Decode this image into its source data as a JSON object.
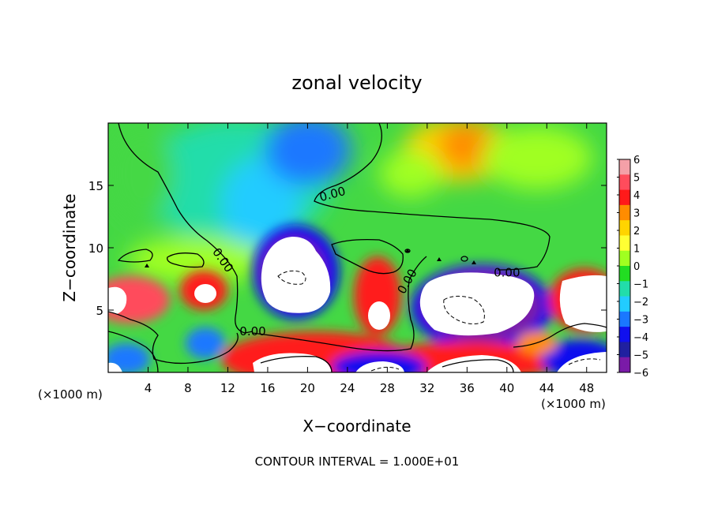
{
  "chart_data": {
    "type": "heatmap",
    "title": "zonal velocity",
    "xlabel": "X−coordinate",
    "ylabel": "Z−coordinate",
    "x_unit_left": "(×1000 m)",
    "x_unit_right": "(×1000 m)",
    "xlim": [
      0,
      50
    ],
    "ylim": [
      0,
      20
    ],
    "xticks": [
      4,
      8,
      12,
      16,
      20,
      24,
      28,
      32,
      36,
      40,
      44,
      48
    ],
    "yticks": [
      5,
      10,
      15
    ],
    "colorbar": {
      "min": -6,
      "max": 6,
      "ticks": [
        "6",
        "5",
        "4",
        "3",
        "2",
        "1",
        "0",
        "−1",
        "−2",
        "−3",
        "−4",
        "−5",
        "−6"
      ],
      "colors": [
        "#f4a0a8",
        "#ff4c5c",
        "#ff1a1a",
        "#ff8c00",
        "#ffd400",
        "#ffff33",
        "#a0ff20",
        "#22dd22",
        "#22ddaa",
        "#22ccff",
        "#1a78ff",
        "#1010ee",
        "#2020a0",
        "#7a1aa8"
      ]
    },
    "contour_labels": [
      {
        "text": "0.00",
        "x": 22.5,
        "y": 14.3,
        "rot": -15
      },
      {
        "text": "0.00",
        "x": 11.5,
        "y": 9.0,
        "rot": 55
      },
      {
        "text": "0.00",
        "x": 14.5,
        "y": 3.3,
        "rot": 0
      },
      {
        "text": "0.00",
        "x": 30.0,
        "y": 7.3,
        "rot": -60
      },
      {
        "text": "0.00",
        "x": 40.0,
        "y": 8.0,
        "rot": 0
      }
    ],
    "footer": "CONTOUR INTERVAL =  1.000E+01"
  }
}
